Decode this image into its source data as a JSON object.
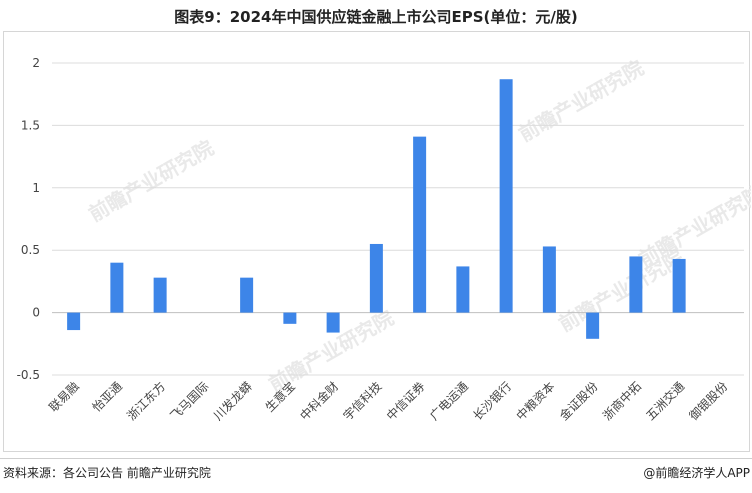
{
  "title": "图表9：2024年中国供应链金融上市公司EPS(单位：元/股)",
  "source": "资料来源：各公司公告 前瞻产业研究院",
  "brand": "@前瞻经济学人APP",
  "watermark": "前瞻产业研究院",
  "colors": {
    "bar": "#3d85e8",
    "grid": "#dcdcdc",
    "axis": "#bfbfbf",
    "text": "#444444"
  },
  "chart_data": {
    "type": "bar",
    "categories": [
      "联易融",
      "怡亚通",
      "浙江东方",
      "飞马国际",
      "川发龙蟒",
      "生意宝",
      "中科金财",
      "宇信科技",
      "中信证券",
      "广电运通",
      "长沙银行",
      "中粮资本",
      "金证股份",
      "浙商中拓",
      "五洲交通",
      "御银股份"
    ],
    "values": [
      -0.14,
      0.4,
      0.28,
      0.0,
      0.28,
      -0.09,
      -0.16,
      0.55,
      1.41,
      0.37,
      1.87,
      0.53,
      -0.21,
      0.45,
      0.43,
      0.0
    ],
    "ylim": [
      -0.5,
      2
    ],
    "yticks": [
      "-0.5",
      "0",
      "0.5",
      "1",
      "1.5",
      "2"
    ],
    "grid": true,
    "legend": "none"
  }
}
